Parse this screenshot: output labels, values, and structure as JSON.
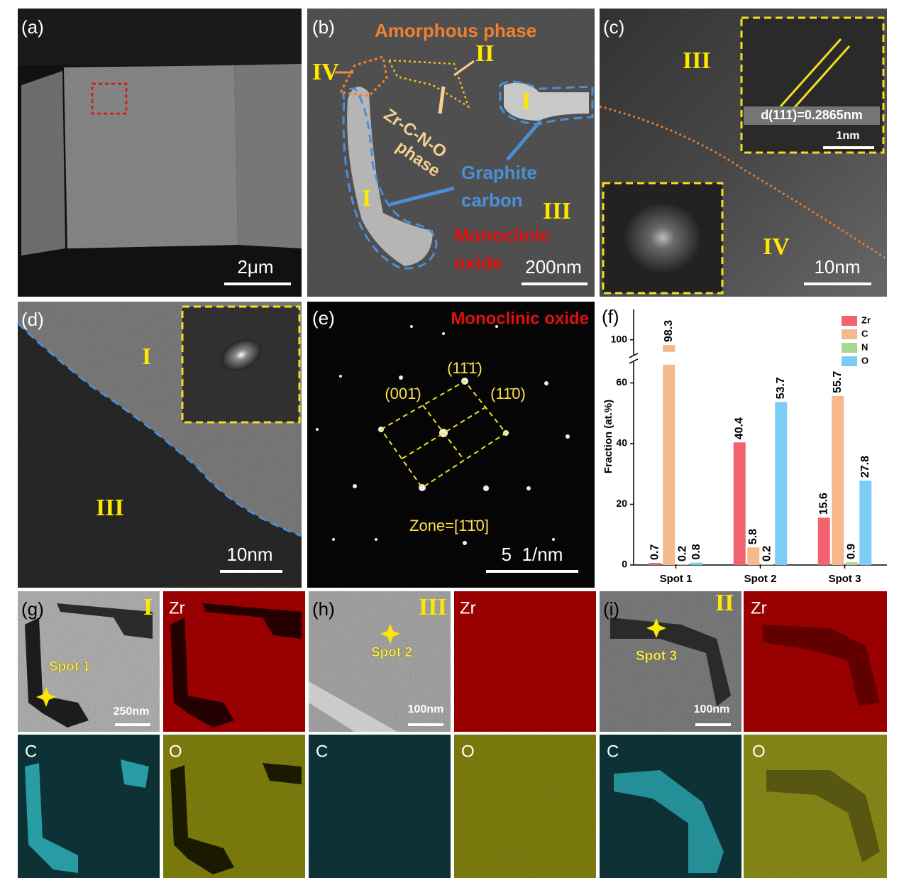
{
  "panels": {
    "a": {
      "label": "(a)",
      "scale_bar": "2μm"
    },
    "b": {
      "label": "(b)",
      "amorphous": "Amorphous phase",
      "region_iv": "IV",
      "region_ii": "II",
      "zr_phase": "Zr-C-N-O",
      "phase": "phase",
      "region_i_top": "I",
      "graphite": "Graphite",
      "carbon": "carbon",
      "region_i_left": "I",
      "region_iii": "III",
      "monoclinic": "Monoclinic",
      "oxide": "oxide",
      "scale_bar": "200nm"
    },
    "c": {
      "label": "(c)",
      "region_iii": "III",
      "d_spacing": "d(111)=0.2865nm",
      "inset_scale": "1nm",
      "region_iv": "IV",
      "scale_bar": "10nm"
    },
    "d": {
      "label": "(d)",
      "region_i": "I",
      "region_iii": "III",
      "scale_bar": "10nm"
    },
    "e": {
      "label": "(e)",
      "title": "Monoclinic oxide",
      "spot_top": "(11̄1̄)",
      "spot_left": "(001̄)",
      "spot_right": "(11̄0)",
      "zone": "Zone=[1̄1̄0]",
      "scale_bar": "5  1/nm"
    },
    "g": {
      "label": "(g)",
      "region": "I",
      "spot": "Spot 1",
      "scale_bar": "250nm",
      "map_zr": "Zr",
      "map_c": "C",
      "map_o": "O"
    },
    "h": {
      "label": "(h)",
      "region": "III",
      "spot": "Spot 2",
      "scale_bar": "100nm",
      "map_zr": "Zr",
      "map_c": "C",
      "map_o": "O"
    },
    "i": {
      "label": "(i)",
      "region": "II",
      "spot": "Spot 3",
      "scale_bar": "100nm",
      "map_zr": "Zr",
      "map_c": "C",
      "map_o": "O"
    }
  },
  "chart_data": {
    "type": "bar",
    "panel_label": "(f)",
    "y_label": "Fraction (at.%)",
    "categories": [
      "Spot 1",
      "Spot 2",
      "Spot 3"
    ],
    "series": [
      {
        "name": "Zr",
        "color": "#f2636f",
        "values": [
          0.7,
          40.4,
          15.6
        ]
      },
      {
        "name": "C",
        "color": "#f5b98c",
        "values": [
          98.3,
          5.8,
          55.7
        ]
      },
      {
        "name": "N",
        "color": "#a6d98f",
        "values": [
          0.2,
          0.2,
          0.9
        ]
      },
      {
        "name": "O",
        "color": "#7ccdf5",
        "values": [
          0.8,
          53.7,
          27.8
        ]
      }
    ],
    "ylim": [
      0,
      110
    ],
    "yticks": [
      0,
      20,
      40,
      60,
      100
    ],
    "axis_break": [
      66,
      96
    ],
    "legend": "top-right",
    "grid": false
  }
}
